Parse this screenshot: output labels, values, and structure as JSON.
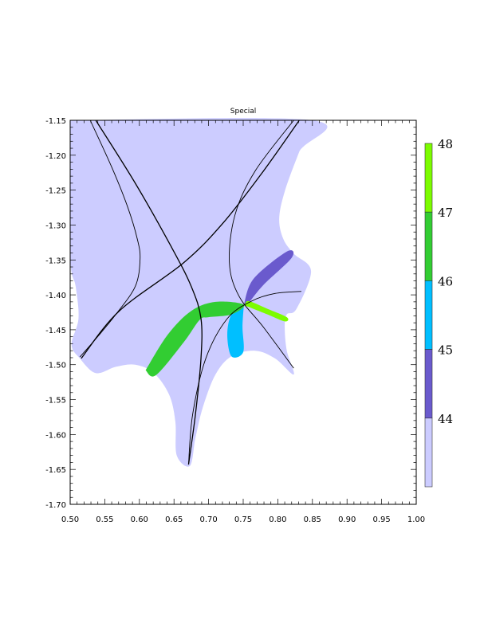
{
  "chart_data": {
    "type": "contour",
    "title": "Special",
    "xlabel": "",
    "ylabel": "",
    "xlim": [
      0.5,
      1.0
    ],
    "ylim": [
      -1.7,
      -1.15
    ],
    "x_ticks": [
      "0.50",
      "0.55",
      "0.60",
      "0.65",
      "0.70",
      "0.75",
      "0.80",
      "0.85",
      "0.90",
      "0.95",
      "1.00"
    ],
    "y_ticks": [
      "-1.15",
      "-1.20",
      "-1.25",
      "-1.30",
      "-1.35",
      "-1.40",
      "-1.45",
      "-1.50",
      "-1.55",
      "-1.60",
      "-1.65",
      "-1.70"
    ],
    "colorbar": {
      "labels": [
        "48",
        "47",
        "46",
        "45",
        "44"
      ],
      "levels": [
        {
          "range": [
            43,
            44
          ],
          "color": "#ccccff"
        },
        {
          "range": [
            44,
            45
          ],
          "color": "#6a5acd"
        },
        {
          "range": [
            45,
            46
          ],
          "color": "#00bfff"
        },
        {
          "range": [
            46,
            47
          ],
          "color": "#32cd32"
        },
        {
          "range": [
            47,
            48
          ],
          "color": "#7cfc00"
        }
      ]
    },
    "regions": [
      {
        "level": "<44",
        "color": "#ccccff",
        "polygon": [
          [
            0.5,
            -1.15
          ],
          [
            0.85,
            -1.15
          ],
          [
            0.831,
            -1.195
          ],
          [
            0.81,
            -1.252
          ],
          [
            0.802,
            -1.291
          ],
          [
            0.808,
            -1.32
          ],
          [
            0.823,
            -1.341
          ],
          [
            0.848,
            -1.366
          ],
          [
            0.827,
            -1.42
          ],
          [
            0.813,
            -1.428
          ],
          [
            0.81,
            -1.446
          ],
          [
            0.813,
            -1.48
          ],
          [
            0.823,
            -1.514
          ],
          [
            0.796,
            -1.491
          ],
          [
            0.767,
            -1.48
          ],
          [
            0.733,
            -1.488
          ],
          [
            0.71,
            -1.514
          ],
          [
            0.692,
            -1.56
          ],
          [
            0.681,
            -1.605
          ],
          [
            0.673,
            -1.645
          ],
          [
            0.654,
            -1.63
          ],
          [
            0.652,
            -1.582
          ],
          [
            0.643,
            -1.543
          ],
          [
            0.621,
            -1.512
          ],
          [
            0.594,
            -1.5
          ],
          [
            0.566,
            -1.503
          ],
          [
            0.537,
            -1.512
          ],
          [
            0.514,
            -1.491
          ],
          [
            0.502,
            -1.471
          ],
          [
            0.512,
            -1.434
          ],
          [
            0.508,
            -1.388
          ],
          [
            0.5,
            -1.343
          ]
        ]
      },
      {
        "level": "44-45",
        "color": "#6a5acd",
        "polygon": [
          [
            0.751,
            -1.414
          ],
          [
            0.765,
            -1.377
          ],
          [
            0.813,
            -1.338
          ],
          [
            0.82,
            -1.347
          ],
          [
            0.779,
            -1.386
          ],
          [
            0.758,
            -1.411
          ]
        ]
      },
      {
        "level": "45-46",
        "color": "#00bfff",
        "polygon": [
          [
            0.751,
            -1.414
          ],
          [
            0.733,
            -1.428
          ],
          [
            0.727,
            -1.457
          ],
          [
            0.733,
            -1.488
          ],
          [
            0.75,
            -1.482
          ],
          [
            0.749,
            -1.446
          ]
        ]
      },
      {
        "level": "46-47",
        "color": "#32cd32",
        "polygon": [
          [
            0.609,
            -1.508
          ],
          [
            0.641,
            -1.457
          ],
          [
            0.675,
            -1.423
          ],
          [
            0.71,
            -1.41
          ],
          [
            0.751,
            -1.414
          ],
          [
            0.733,
            -1.428
          ],
          [
            0.7,
            -1.432
          ],
          [
            0.687,
            -1.436
          ],
          [
            0.664,
            -1.468
          ],
          [
            0.624,
            -1.515
          ]
        ]
      },
      {
        "level": "47-48",
        "color": "#7cfc00",
        "polygon": [
          [
            0.752,
            -1.415
          ],
          [
            0.758,
            -1.409
          ],
          [
            0.785,
            -1.42
          ],
          [
            0.813,
            -1.432
          ],
          [
            0.81,
            -1.438
          ],
          [
            0.785,
            -1.428
          ]
        ]
      }
    ],
    "contour_lines": [
      [
        [
          0.529,
          -1.15
        ],
        [
          0.56,
          -1.217
        ],
        [
          0.583,
          -1.274
        ],
        [
          0.597,
          -1.32
        ],
        [
          0.601,
          -1.349
        ],
        [
          0.594,
          -1.388
        ],
        [
          0.566,
          -1.428
        ],
        [
          0.537,
          -1.463
        ],
        [
          0.514,
          -1.489
        ]
      ],
      [
        [
          0.537,
          -1.15
        ],
        [
          0.594,
          -1.24
        ],
        [
          0.646,
          -1.331
        ],
        [
          0.675,
          -1.388
        ],
        [
          0.689,
          -1.434
        ],
        [
          0.689,
          -1.491
        ],
        [
          0.681,
          -1.571
        ],
        [
          0.671,
          -1.643
        ]
      ],
      [
        [
          0.516,
          -1.491
        ],
        [
          0.571,
          -1.423
        ],
        [
          0.664,
          -1.354
        ],
        [
          0.721,
          -1.297
        ],
        [
          0.779,
          -1.223
        ],
        [
          0.831,
          -1.15
        ]
      ],
      [
        [
          0.823,
          -1.15
        ],
        [
          0.767,
          -1.223
        ],
        [
          0.738,
          -1.286
        ],
        [
          0.73,
          -1.354
        ],
        [
          0.744,
          -1.402
        ],
        [
          0.779,
          -1.446
        ],
        [
          0.823,
          -1.505
        ]
      ],
      [
        [
          0.671,
          -1.643
        ],
        [
          0.677,
          -1.571
        ],
        [
          0.696,
          -1.491
        ],
        [
          0.727,
          -1.434
        ],
        [
          0.762,
          -1.409
        ],
        [
          0.796,
          -1.398
        ],
        [
          0.834,
          -1.395
        ]
      ]
    ],
    "grid": false
  }
}
